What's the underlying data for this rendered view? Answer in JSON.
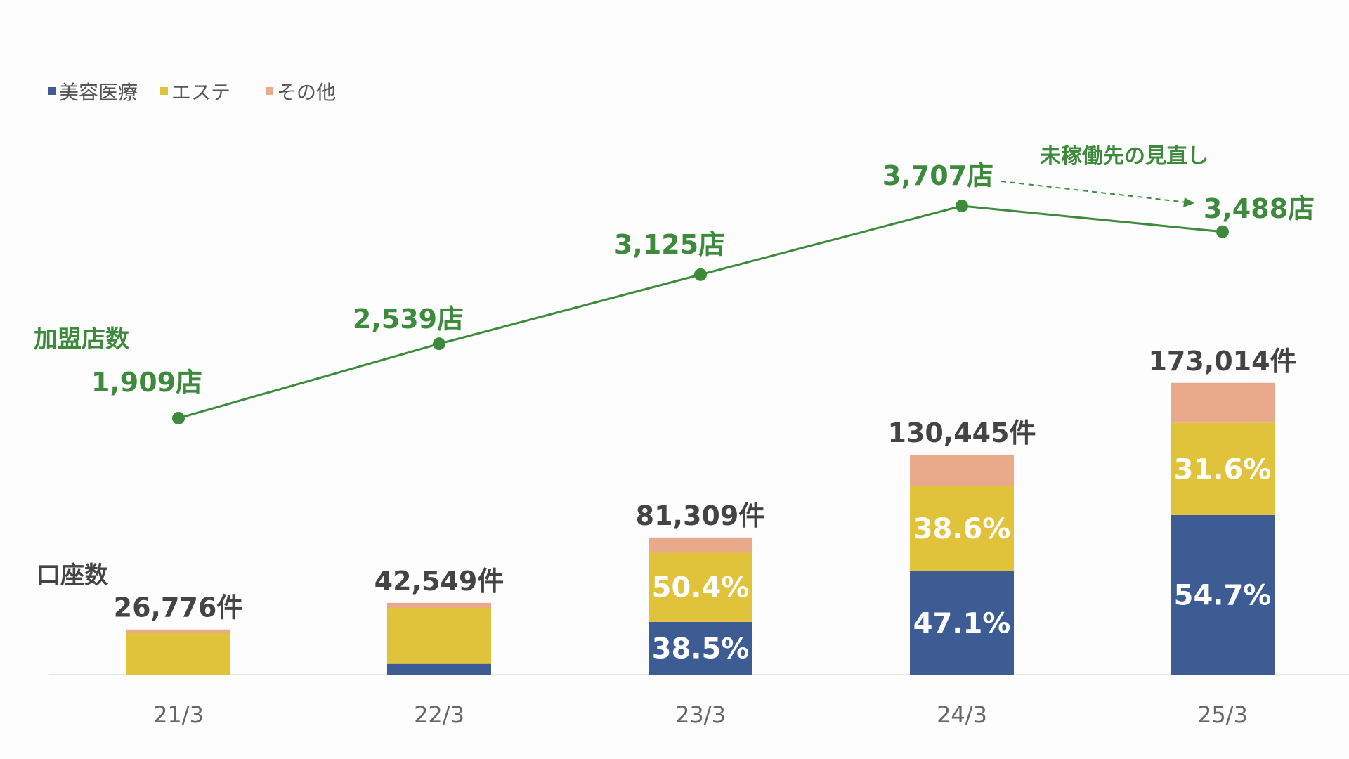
{
  "chart_data": {
    "type": "bar",
    "categories": [
      "21/3",
      "22/3",
      "23/3",
      "24/3",
      "25/3"
    ],
    "bar_axis_label": "口座数",
    "line_axis_label": "加盟店数",
    "series": [
      {
        "name": "美容医療",
        "values": [
          0,
          6383,
          31304,
          61440,
          94639
        ]
      },
      {
        "name": "エステ",
        "values": [
          24634,
          33189,
          40980,
          50352,
          54672
        ]
      },
      {
        "name": "その他",
        "values": [
          2142,
          2977,
          9025,
          18653,
          23703
        ]
      }
    ],
    "totals": [
      26776,
      42549,
      81309,
      130445,
      173014
    ],
    "total_labels": [
      "26,776件",
      "42,549件",
      "81,309件",
      "130,445件",
      "173,014件"
    ],
    "percent_labels": [
      {
        "category": "23/3",
        "series": "美容医療",
        "text": "38.5%"
      },
      {
        "category": "23/3",
        "series": "エステ",
        "text": "50.4%"
      },
      {
        "category": "24/3",
        "series": "美容医療",
        "text": "47.1%"
      },
      {
        "category": "24/3",
        "series": "エステ",
        "text": "38.6%"
      },
      {
        "category": "25/3",
        "series": "美容医療",
        "text": "54.7%"
      },
      {
        "category": "25/3",
        "series": "エステ",
        "text": "31.6%"
      }
    ],
    "line_series": {
      "values": [
        1909,
        2539,
        3125,
        3707,
        3488
      ],
      "labels": [
        "1,909店",
        "2,539店",
        "3,125店",
        "3,707店",
        "3,488店"
      ]
    },
    "annotation": "未稼働先の見直し",
    "legend_position": "top-left",
    "grid": false
  },
  "colors": {
    "美容医療": "#3d5c94",
    "エステ": "#e0c33b",
    "その他": "#e9a98b",
    "line": "#3d8a3d",
    "axis": "#e6e6e6"
  }
}
